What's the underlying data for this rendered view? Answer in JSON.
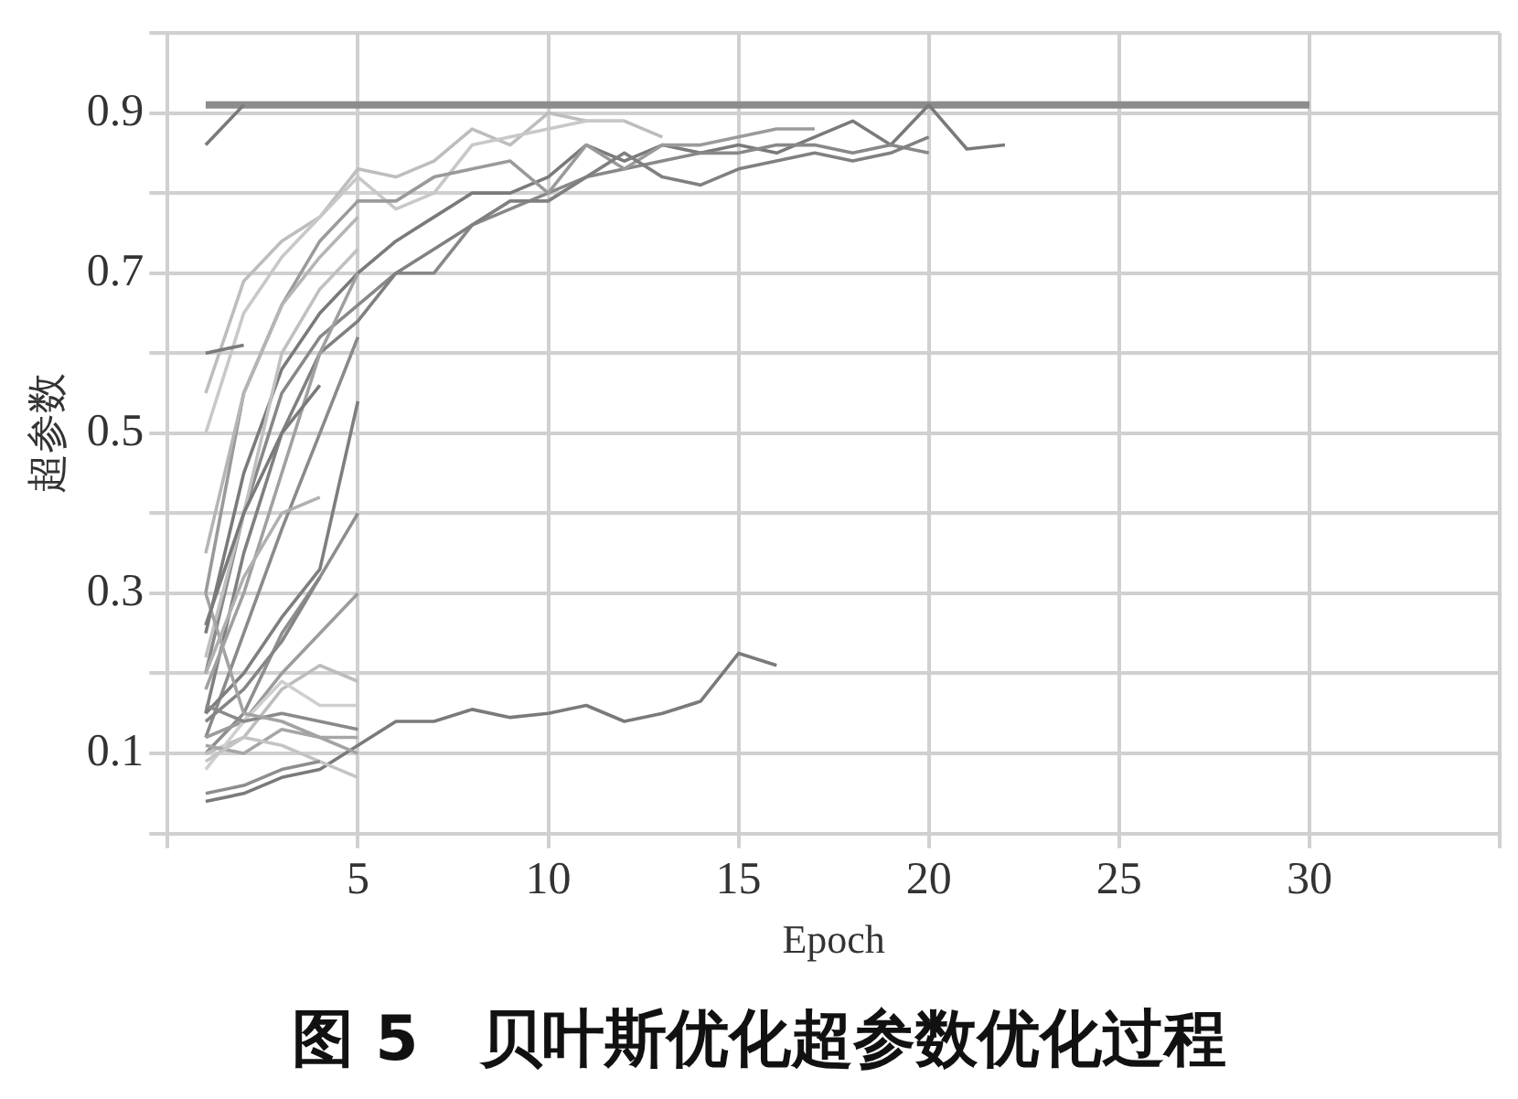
{
  "chart_data": {
    "type": "line",
    "title": "图 5　贝叶斯优化超参数优化过程",
    "xlabel": "Epoch",
    "ylabel": "超参数",
    "xlim": [
      0,
      35
    ],
    "xticks": [
      {
        "value": 0,
        "label": null
      },
      5,
      10,
      15,
      20,
      25,
      30,
      {
        "value": 35,
        "label": null
      }
    ],
    "ylim": [
      0,
      1.0
    ],
    "yticks": [
      {
        "value": 0,
        "label": null
      },
      0.1,
      {
        "value": 0.2,
        "label": null
      },
      0.3,
      {
        "value": 0.4,
        "label": null
      },
      0.5,
      {
        "value": 0.6,
        "label": null
      },
      0.7,
      {
        "value": 0.8,
        "label": null
      },
      0.9,
      {
        "value": 1.0,
        "label": null
      }
    ],
    "grid": true,
    "legend": false,
    "marker": "none",
    "line_style": "solid",
    "series": [
      {
        "color": "#8c8c8c",
        "x": [
          1,
          30
        ],
        "values": [
          0.91,
          0.91
        ]
      },
      {
        "color": "#7a7a7a",
        "x": [
          1,
          2
        ],
        "values": [
          0.86,
          0.91
        ]
      },
      {
        "color": "#7a7a7a",
        "x": [
          1,
          2,
          3,
          4,
          5,
          6,
          7,
          8,
          9,
          10,
          11,
          12,
          13,
          14,
          15,
          16,
          17,
          18,
          19,
          20,
          21,
          22
        ],
        "values": [
          0.25,
          0.45,
          0.58,
          0.65,
          0.7,
          0.74,
          0.77,
          0.8,
          0.8,
          0.82,
          0.86,
          0.84,
          0.86,
          0.85,
          0.86,
          0.85,
          0.87,
          0.89,
          0.86,
          0.91,
          0.855,
          0.86
        ]
      },
      {
        "color": "#888888",
        "x": [
          1,
          2,
          3,
          4,
          5,
          6,
          7,
          8,
          9,
          10,
          11,
          12,
          13,
          14,
          15,
          16,
          17,
          18,
          19,
          20
        ],
        "values": [
          0.2,
          0.4,
          0.55,
          0.62,
          0.66,
          0.7,
          0.7,
          0.76,
          0.78,
          0.8,
          0.82,
          0.83,
          0.84,
          0.85,
          0.85,
          0.86,
          0.86,
          0.85,
          0.86,
          0.85
        ]
      },
      {
        "color": "#bdbdbd",
        "x": [
          1,
          2,
          3,
          4,
          5,
          6,
          7,
          8,
          9,
          10,
          11,
          12,
          13
        ],
        "values": [
          0.55,
          0.69,
          0.74,
          0.77,
          0.83,
          0.82,
          0.84,
          0.88,
          0.86,
          0.9,
          0.89,
          0.89,
          0.87
        ]
      },
      {
        "color": "#c8c8c8",
        "x": [
          1,
          2,
          3,
          4,
          5,
          6,
          7,
          8,
          9,
          10,
          11,
          12
        ],
        "values": [
          0.5,
          0.65,
          0.72,
          0.77,
          0.82,
          0.78,
          0.8,
          0.86,
          0.87,
          0.88,
          0.89,
          0.89
        ]
      },
      {
        "color": "#9a9a9a",
        "x": [
          1,
          2,
          3,
          4,
          5,
          6,
          7,
          8,
          9,
          10,
          11,
          12,
          13,
          14,
          15,
          16,
          17
        ],
        "values": [
          0.3,
          0.55,
          0.66,
          0.74,
          0.79,
          0.79,
          0.82,
          0.83,
          0.84,
          0.8,
          0.86,
          0.83,
          0.86,
          0.86,
          0.87,
          0.88,
          0.88
        ]
      },
      {
        "color": "#808080",
        "x": [
          1,
          2,
          3,
          4,
          5,
          6,
          7,
          8,
          9,
          10,
          11,
          12,
          13,
          14,
          15,
          16,
          17,
          18,
          19,
          20
        ],
        "values": [
          0.15,
          0.35,
          0.5,
          0.6,
          0.64,
          0.7,
          0.73,
          0.76,
          0.79,
          0.79,
          0.82,
          0.85,
          0.82,
          0.81,
          0.83,
          0.84,
          0.85,
          0.84,
          0.85,
          0.87
        ]
      },
      {
        "color": "#7a7a7a",
        "x": [
          1,
          2,
          3,
          4,
          5,
          6,
          7,
          8,
          9,
          10,
          11,
          12,
          13,
          14,
          15,
          16
        ],
        "values": [
          0.04,
          0.05,
          0.07,
          0.08,
          0.11,
          0.14,
          0.14,
          0.155,
          0.145,
          0.15,
          0.16,
          0.14,
          0.15,
          0.165,
          0.225,
          0.21
        ]
      },
      {
        "color": "#7a7a7a",
        "x": [
          1,
          2
        ],
        "values": [
          0.6,
          0.61
        ]
      },
      {
        "color": "#b5b5b5",
        "x": [
          1,
          2,
          3,
          4,
          5
        ],
        "values": [
          0.35,
          0.55,
          0.66,
          0.72,
          0.77
        ]
      },
      {
        "color": "#a0a0a0",
        "x": [
          1,
          2,
          3,
          4,
          5
        ],
        "values": [
          0.18,
          0.3,
          0.45,
          0.6,
          0.7
        ]
      },
      {
        "color": "#8a8a8a",
        "x": [
          1,
          2,
          3,
          4,
          5
        ],
        "values": [
          0.12,
          0.25,
          0.38,
          0.5,
          0.62
        ]
      },
      {
        "color": "#c0c0c0",
        "x": [
          1,
          2,
          3,
          4,
          5
        ],
        "values": [
          0.22,
          0.4,
          0.6,
          0.68,
          0.73
        ]
      },
      {
        "color": "#7e7e7e",
        "x": [
          1,
          2,
          3,
          4,
          5
        ],
        "values": [
          0.15,
          0.2,
          0.27,
          0.33,
          0.54
        ]
      },
      {
        "color": "#8e8e8e",
        "x": [
          1,
          2,
          3,
          4,
          5
        ],
        "values": [
          0.1,
          0.15,
          0.25,
          0.32,
          0.4
        ]
      },
      {
        "color": "#9c9c9c",
        "x": [
          1,
          2,
          3,
          4,
          5
        ],
        "values": [
          0.12,
          0.14,
          0.2,
          0.25,
          0.3
        ]
      },
      {
        "color": "#858585",
        "x": [
          1,
          2,
          3,
          4
        ],
        "values": [
          0.14,
          0.18,
          0.24,
          0.32
        ]
      },
      {
        "color": "#bdbdbd",
        "x": [
          1,
          2,
          3,
          4,
          5
        ],
        "values": [
          0.1,
          0.12,
          0.18,
          0.21,
          0.19
        ]
      },
      {
        "color": "#cfcfcf",
        "x": [
          1,
          2,
          3,
          4,
          5
        ],
        "values": [
          0.08,
          0.14,
          0.19,
          0.16,
          0.16
        ]
      },
      {
        "color": "#8a8a8a",
        "x": [
          1,
          2,
          3,
          4,
          5
        ],
        "values": [
          0.16,
          0.14,
          0.15,
          0.14,
          0.13
        ]
      },
      {
        "color": "#a6a6a6",
        "x": [
          1,
          2,
          3,
          4,
          5
        ],
        "values": [
          0.11,
          0.1,
          0.13,
          0.12,
          0.12
        ]
      },
      {
        "color": "#c4c4c4",
        "x": [
          1,
          2,
          3,
          4,
          5
        ],
        "values": [
          0.09,
          0.12,
          0.11,
          0.09,
          0.07
        ]
      },
      {
        "color": "#8e8e8e",
        "x": [
          1,
          2,
          3,
          4
        ],
        "values": [
          0.05,
          0.06,
          0.08,
          0.09
        ]
      },
      {
        "color": "#a3a3a3",
        "x": [
          1,
          2,
          3,
          4,
          5
        ],
        "values": [
          0.3,
          0.15,
          0.14,
          0.12,
          0.1
        ]
      },
      {
        "color": "#7a7a7a",
        "x": [
          1,
          2,
          3,
          4
        ],
        "values": [
          0.26,
          0.4,
          0.5,
          0.56
        ]
      },
      {
        "color": "#b0b0b0",
        "x": [
          1,
          2,
          3,
          4
        ],
        "values": [
          0.2,
          0.32,
          0.4,
          0.42
        ]
      }
    ]
  }
}
